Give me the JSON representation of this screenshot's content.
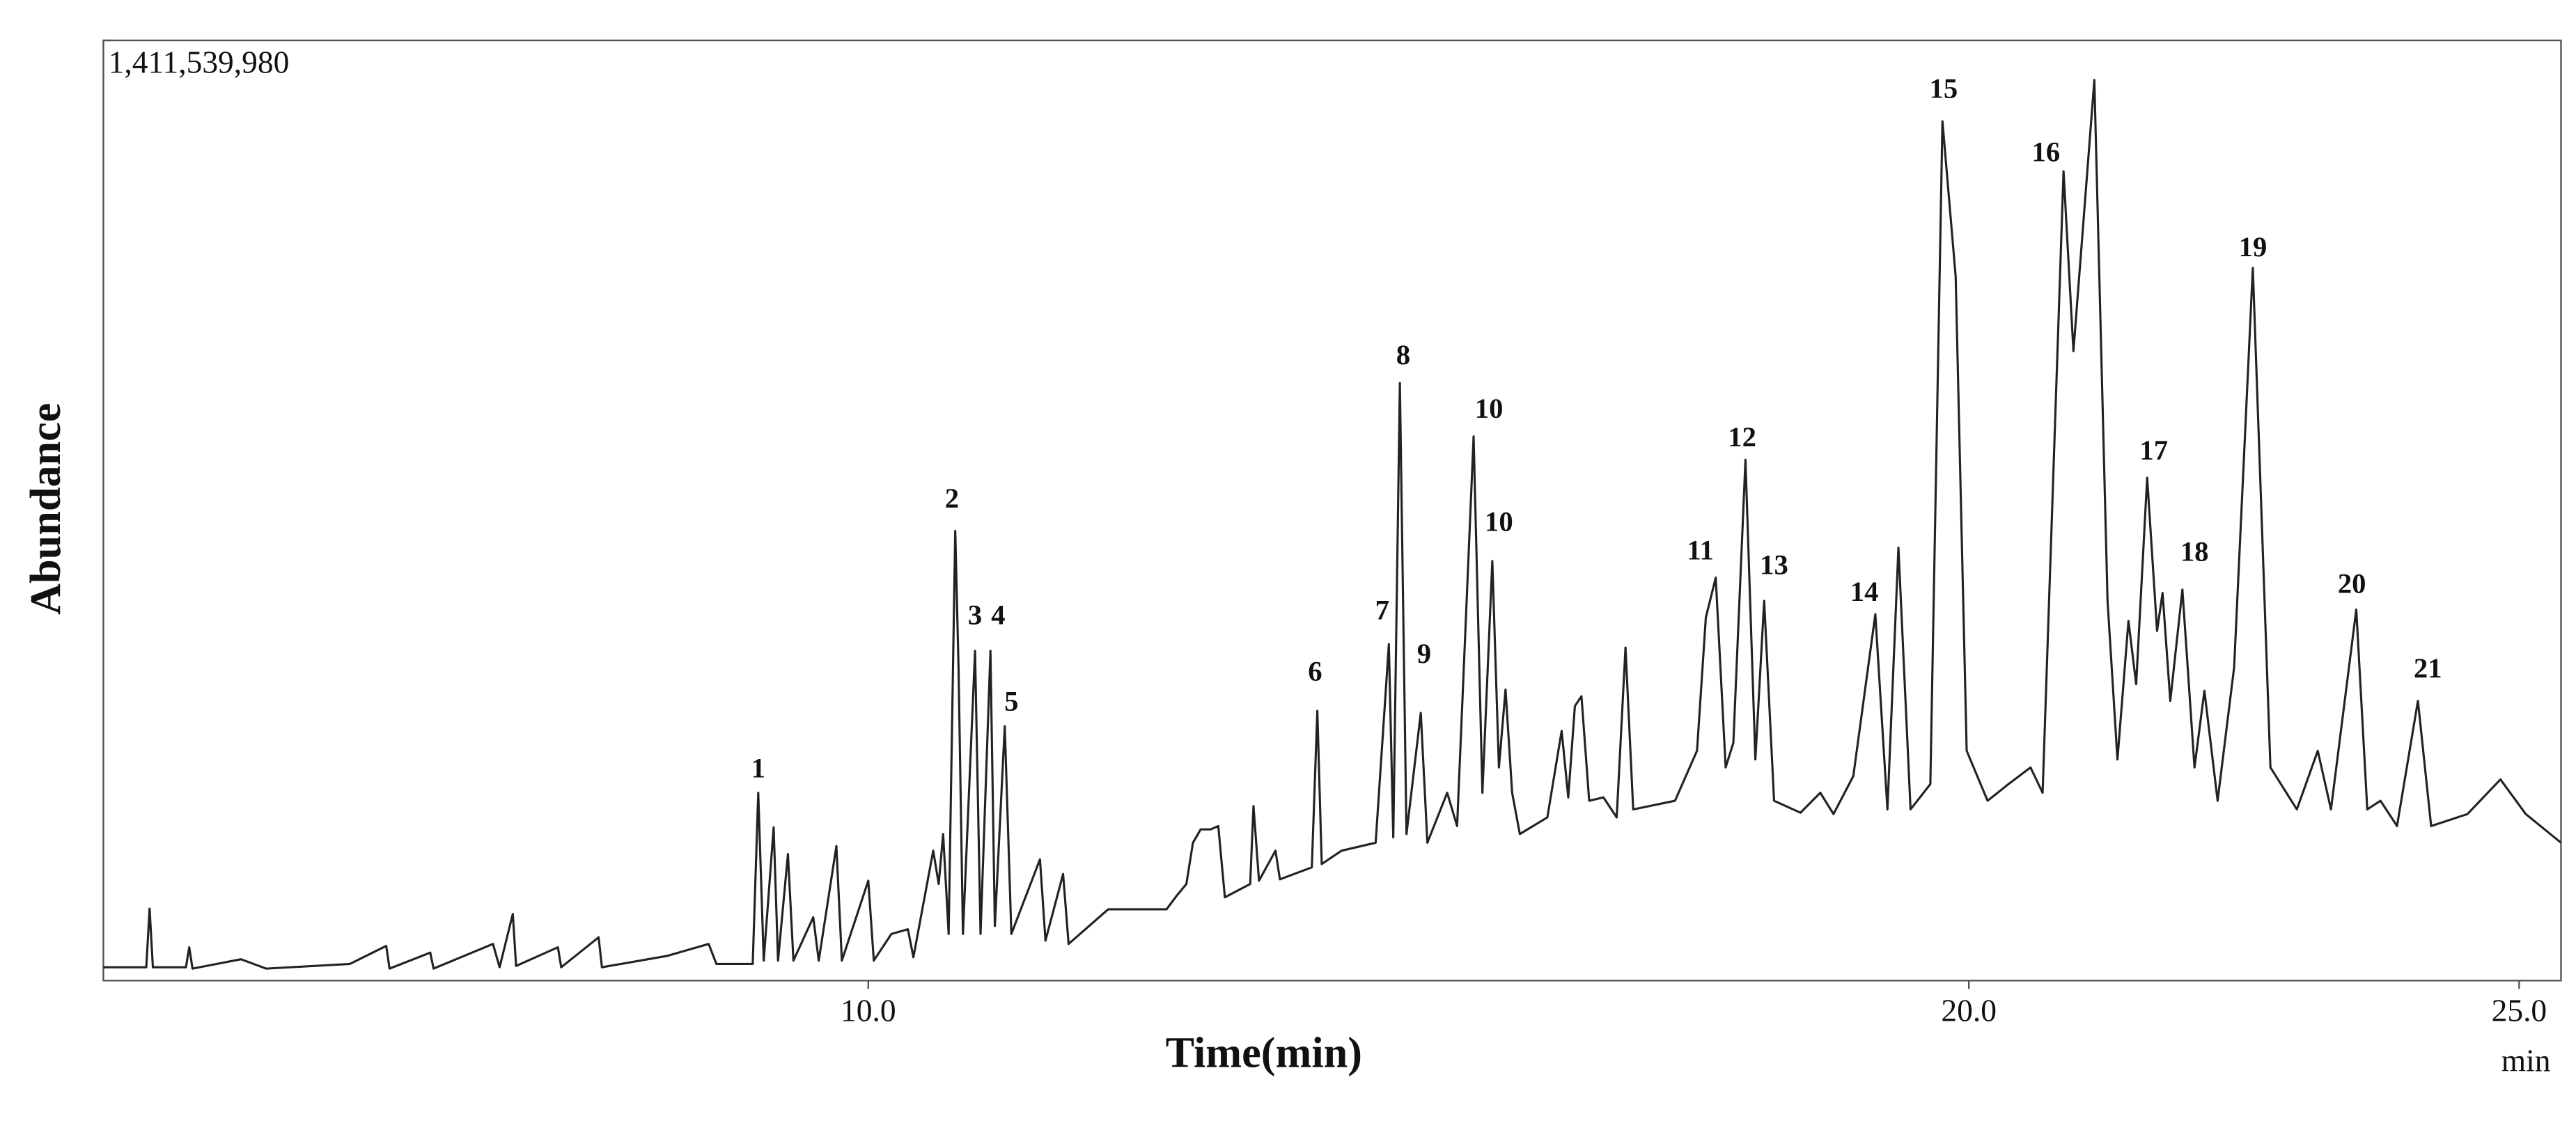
{
  "chart_data": {
    "type": "line",
    "xlabel": "Time(min)",
    "ylabel": "Abundance",
    "x_unit": "min",
    "color": "#222222",
    "xlim": [
      3.05,
      25.38
    ],
    "ylim": [
      0,
      1411539980
    ],
    "xticks": [
      {
        "value": 10,
        "label": "10.0"
      },
      {
        "value": 20,
        "label": "20.0"
      },
      {
        "value": 25,
        "label": "25.0"
      }
    ],
    "yticks": [
      {
        "value": 1411539980,
        "label": "1,411,539,980"
      }
    ],
    "x": [
      3.05,
      3.44,
      3.47,
      3.5,
      3.8,
      3.83,
      3.86,
      4.3,
      4.53,
      5.29,
      5.62,
      5.65,
      6.02,
      6.05,
      6.59,
      6.65,
      6.77,
      6.8,
      7.18,
      7.21,
      7.55,
      7.58,
      8.17,
      8.55,
      8.62,
      8.95,
      9.0,
      9.05,
      9.14,
      9.18,
      9.27,
      9.32,
      9.5,
      9.55,
      9.71,
      9.76,
      10.0,
      10.05,
      10.21,
      10.36,
      10.41,
      10.59,
      10.64,
      10.68,
      10.73,
      10.79,
      10.82,
      10.86,
      10.97,
      11.02,
      11.11,
      11.15,
      11.24,
      11.3,
      11.56,
      11.61,
      11.77,
      11.82,
      12.18,
      12.71,
      12.8,
      12.89,
      12.95,
      13.02,
      13.11,
      13.18,
      13.24,
      13.47,
      13.5,
      13.55,
      13.7,
      13.74,
      14.03,
      14.08,
      14.12,
      14.3,
      14.61,
      14.73,
      14.77,
      14.83,
      14.89,
      15.02,
      15.08,
      15.26,
      15.35,
      15.5,
      15.58,
      15.67,
      15.73,
      15.79,
      15.85,
      15.92,
      16.17,
      16.3,
      16.36,
      16.42,
      16.48,
      16.55,
      16.68,
      16.8,
      16.88,
      16.95,
      17.33,
      17.53,
      17.61,
      17.7,
      17.79,
      17.86,
      17.97,
      18.06,
      18.14,
      18.23,
      18.47,
      18.65,
      18.77,
      18.95,
      19.15,
      19.26,
      19.36,
      19.47,
      19.65,
      19.76,
      19.88,
      19.98,
      20.17,
      20.36,
      20.56,
      20.67,
      20.86,
      20.95,
      21.14,
      21.26,
      21.35,
      21.45,
      21.52,
      21.62,
      21.71,
      21.76,
      21.83,
      21.94,
      22.05,
      22.14,
      22.26,
      22.41,
      22.58,
      22.74,
      22.98,
      23.17,
      23.29,
      23.52,
      23.62,
      23.74,
      23.89,
      24.08,
      24.2,
      24.53,
      24.83,
      25.06,
      25.38
    ],
    "values": [
      20000000.0,
      20000000.0,
      108000000.0,
      20000000.0,
      20000000.0,
      50000000.0,
      18000000.0,
      32000000.0,
      18000000.0,
      25000000.0,
      52000000.0,
      18000000.0,
      42000000.0,
      18000000.0,
      55000000.0,
      20000000.0,
      100000000.0,
      22000000.0,
      50000000.0,
      20000000.0,
      65000000.0,
      20000000.0,
      37000000.0,
      55000000.0,
      25000000.0,
      25000000.0,
      282000000.0,
      30000000.0,
      230000000.0,
      30000000.0,
      190000000.0,
      30000000.0,
      95000000.0,
      30000000.0,
      202000000.0,
      30000000.0,
      150000000.0,
      30000000.0,
      70000000.0,
      77000000.0,
      35000000.0,
      195000000.0,
      145000000.0,
      220000000.0,
      70000000.0,
      675000000.0,
      470000000.0,
      70000000.0,
      495000000.0,
      70000000.0,
      495000000.0,
      82000000.0,
      382000000.0,
      70000000.0,
      182000000.0,
      60000000.0,
      160000000.0,
      55000000.0,
      107000000.0,
      107000000.0,
      127000000.0,
      145000000.0,
      207000000.0,
      227000000.0,
      227000000.0,
      232000000.0,
      125000000.0,
      145000000.0,
      262000000.0,
      150000000.0,
      195000000.0,
      152000000.0,
      170000000.0,
      405000000.0,
      175000000.0,
      195000000.0,
      207000000.0,
      505000000.0,
      215000000.0,
      897000000.0,
      220000000.0,
      402000000.0,
      207000000.0,
      282000000.0,
      232000000.0,
      817000000.0,
      282000000.0,
      630000000.0,
      320000000.0,
      437000000.0,
      282000000.0,
      220000000.0,
      245000000.0,
      375000000.0,
      275000000.0,
      412000000.0,
      427000000.0,
      270000000.0,
      275000000.0,
      245000000.0,
      500000000.0,
      257000000.0,
      270000000.0,
      345000000.0,
      545000000.0,
      605000000.0,
      320000000.0,
      357000000.0,
      782000000.0,
      332000000.0,
      570000000.0,
      270000000.0,
      252000000.0,
      282000000.0,
      250000000.0,
      307000000.0,
      550000000.0,
      257000000.0,
      650000000.0,
      257000000.0,
      295000000.0,
      1290000000.0,
      1057000000.0,
      345000000.0,
      270000000.0,
      295000000.0,
      320000000.0,
      282000000.0,
      1215000000.0,
      945000000.0,
      1352000000.0,
      570000000.0,
      332000000.0,
      540000000.0,
      445000000.0,
      755000000.0,
      525000000.0,
      582000000.0,
      420000000.0,
      587000000.0,
      320000000.0,
      435000000.0,
      270000000.0,
      470000000.0,
      1070000000.0,
      320000000.0,
      257000000.0,
      345000000.0,
      257000000.0,
      557000000.0,
      257000000.0,
      270000000.0,
      232000000.0,
      420000000.0,
      232000000.0,
      250000000.0,
      302000000.0,
      250000000.0,
      207000000.0
    ],
    "annotations": [
      {
        "text": "1",
        "x": 9.0,
        "y": 315000000.0
      },
      {
        "text": "2",
        "x": 10.76,
        "y": 720000000.0
      },
      {
        "text": "3",
        "x": 10.97,
        "y": 545000000.0
      },
      {
        "text": "4",
        "x": 11.18,
        "y": 545000000.0
      },
      {
        "text": "5",
        "x": 11.3,
        "y": 415000000.0
      },
      {
        "text": "6",
        "x": 14.06,
        "y": 460000000.0
      },
      {
        "text": "7",
        "x": 14.67,
        "y": 552000000.0
      },
      {
        "text": "8",
        "x": 14.86,
        "y": 935000000.0
      },
      {
        "text": "9",
        "x": 15.05,
        "y": 487000000.0
      },
      {
        "text": "10",
        "x": 15.64,
        "y": 855000000.0
      },
      {
        "text": "10",
        "x": 15.73,
        "y": 685000000.0
      },
      {
        "text": "11",
        "x": 17.56,
        "y": 642000000.0
      },
      {
        "text": "12",
        "x": 17.94,
        "y": 812000000.0
      },
      {
        "text": "13",
        "x": 18.23,
        "y": 620000000.0
      },
      {
        "text": "14",
        "x": 19.05,
        "y": 580000000.0
      },
      {
        "text": "15",
        "x": 19.77,
        "y": 1335000000.0
      },
      {
        "text": "16",
        "x": 20.7,
        "y": 1240000000.0
      },
      {
        "text": "17",
        "x": 21.68,
        "y": 792000000.0
      },
      {
        "text": "18",
        "x": 22.05,
        "y": 640000000.0
      },
      {
        "text": "19",
        "x": 22.58,
        "y": 1097000000.0
      },
      {
        "text": "20",
        "x": 23.48,
        "y": 592000000.0
      },
      {
        "text": "21",
        "x": 24.17,
        "y": 465000000.0
      }
    ]
  }
}
